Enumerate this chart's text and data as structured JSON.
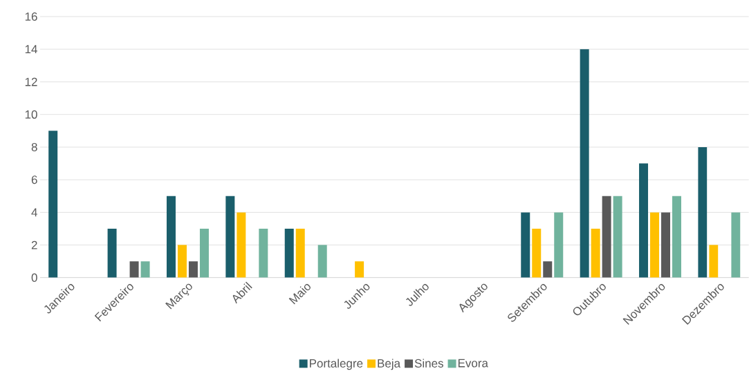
{
  "chart_data": {
    "type": "bar",
    "categories": [
      "Janeiro",
      "Fevereiro",
      "Março",
      "Abril",
      "Maio",
      "Junho",
      "Julho",
      "Agosto",
      "Setembro",
      "Outubro",
      "Novembro",
      "Dezembro"
    ],
    "series": [
      {
        "name": "Portalegre",
        "color": "#1a5e6b",
        "values": [
          9,
          3,
          5,
          5,
          3,
          0,
          0,
          0,
          4,
          14,
          7,
          8
        ]
      },
      {
        "name": "Beja",
        "color": "#ffc000",
        "values": [
          0,
          0,
          2,
          4,
          3,
          1,
          0,
          0,
          3,
          3,
          4,
          2
        ]
      },
      {
        "name": "Sines",
        "color": "#595959",
        "values": [
          0,
          1,
          1,
          0,
          0,
          0,
          0,
          0,
          1,
          5,
          4,
          0
        ]
      },
      {
        "name": "Evora",
        "color": "#70b39d",
        "values": [
          0,
          1,
          3,
          3,
          2,
          0,
          0,
          0,
          4,
          5,
          5,
          4
        ]
      }
    ],
    "ylim": [
      0,
      16
    ],
    "yticks": [
      0,
      2,
      4,
      6,
      8,
      10,
      12,
      14,
      16
    ],
    "grid": "y",
    "legend": "bottom"
  }
}
